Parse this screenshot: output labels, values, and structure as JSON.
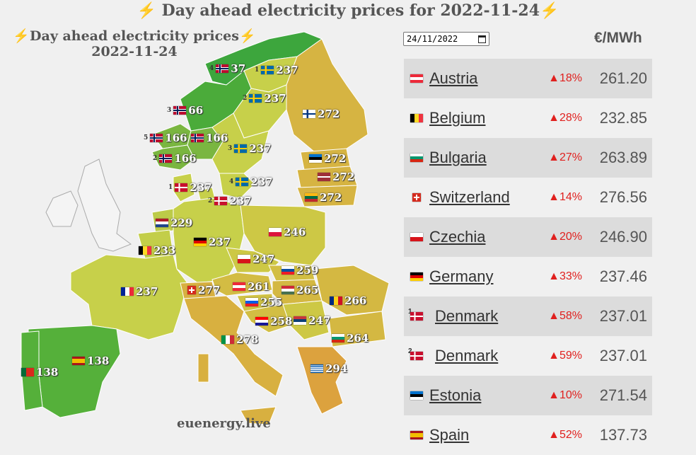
{
  "page_title": "Day ahead electricity prices for 2022-11-24",
  "map": {
    "title_line1": "Day ahead electricity prices",
    "title_line2": "2022-11-24",
    "footer": "euenergy.live",
    "labels": [
      {
        "name": "NO4",
        "sup": "4",
        "value": "37",
        "flag": "norway",
        "fill": "#3da63d"
      },
      {
        "name": "SE1",
        "sup": "1",
        "value": "237",
        "flag": "sweden",
        "fill": "#c7d04a"
      },
      {
        "name": "SE2",
        "sup": "2",
        "value": "237",
        "flag": "sweden",
        "fill": "#c7d04a"
      },
      {
        "name": "FI",
        "sup": "",
        "value": "272",
        "flag": "finland",
        "fill": "#d6b442"
      },
      {
        "name": "NO3",
        "sup": "3",
        "value": "66",
        "flag": "norway",
        "fill": "#4bab3a"
      },
      {
        "name": "NO5",
        "sup": "5",
        "value": "166",
        "flag": "norway",
        "fill": "#7ab640"
      },
      {
        "name": "NO1",
        "sup": "",
        "value": "166",
        "flag": "norway",
        "fill": "#7ab640"
      },
      {
        "name": "NO2",
        "sup": "2",
        "value": "166",
        "flag": "norway",
        "fill": "#7ab640"
      },
      {
        "name": "SE3",
        "sup": "3",
        "value": "237",
        "flag": "sweden",
        "fill": "#c7d04a"
      },
      {
        "name": "EE",
        "sup": "",
        "value": "272",
        "flag": "estonia",
        "fill": "#d6b442"
      },
      {
        "name": "LV",
        "sup": "",
        "value": "272",
        "flag": "latvia",
        "fill": "#d6b442"
      },
      {
        "name": "SE4",
        "sup": "4",
        "value": "237",
        "flag": "sweden",
        "fill": "#c7d04a"
      },
      {
        "name": "LT",
        "sup": "",
        "value": "272",
        "flag": "lithuania",
        "fill": "#d6b442"
      },
      {
        "name": "DK1",
        "sup": "1",
        "value": "237",
        "flag": "denmark",
        "fill": "#c7d04a"
      },
      {
        "name": "DK2",
        "sup": "2",
        "value": "237",
        "flag": "denmark",
        "fill": "#c7d04a"
      },
      {
        "name": "NL",
        "sup": "",
        "value": "229",
        "flag": "netherlands",
        "fill": "#bccb48"
      },
      {
        "name": "PL",
        "sup": "",
        "value": "246",
        "flag": "poland",
        "fill": "#cdc845"
      },
      {
        "name": "DE",
        "sup": "",
        "value": "237",
        "flag": "germany",
        "fill": "#c7d04a"
      },
      {
        "name": "BE",
        "sup": "",
        "value": "233",
        "flag": "belgium",
        "fill": "#c3ce49"
      },
      {
        "name": "CZ",
        "sup": "",
        "value": "247",
        "flag": "czechia",
        "fill": "#cdc845"
      },
      {
        "name": "SK",
        "sup": "",
        "value": "259",
        "flag": "slovakia",
        "fill": "#d2be43"
      },
      {
        "name": "FR",
        "sup": "",
        "value": "237",
        "flag": "france",
        "fill": "#c7d04a"
      },
      {
        "name": "CH",
        "sup": "",
        "value": "277",
        "flag": "switzerland",
        "fill": "#d8b040"
      },
      {
        "name": "AT",
        "sup": "",
        "value": "261",
        "flag": "austria",
        "fill": "#d3bc43"
      },
      {
        "name": "HU",
        "sup": "",
        "value": "265",
        "flag": "hungary",
        "fill": "#d4b842"
      },
      {
        "name": "RO",
        "sup": "",
        "value": "266",
        "flag": "romania",
        "fill": "#d4b842"
      },
      {
        "name": "SI",
        "sup": "",
        "value": "255",
        "flag": "slovenia",
        "fill": "#d0c244"
      },
      {
        "name": "HR",
        "sup": "",
        "value": "258",
        "flag": "croatia",
        "fill": "#d2be43"
      },
      {
        "name": "RS",
        "sup": "",
        "value": "247",
        "flag": "serbia",
        "fill": "#cdc845"
      },
      {
        "name": "IT",
        "sup": "",
        "value": "278",
        "flag": "italy",
        "fill": "#d8b040"
      },
      {
        "name": "BG",
        "sup": "",
        "value": "264",
        "flag": "bulgaria",
        "fill": "#d4b842"
      },
      {
        "name": "ES",
        "sup": "",
        "value": "138",
        "flag": "spain",
        "fill": "#55b03a"
      },
      {
        "name": "PT",
        "sup": "",
        "value": "138",
        "flag": "portugal",
        "fill": "#55b03a"
      },
      {
        "name": "GR",
        "sup": "",
        "value": "294",
        "flag": "greece",
        "fill": "#dca23e"
      }
    ]
  },
  "date_input": {
    "value": "24/11/2022"
  },
  "unit_header": "€/MWh",
  "table": [
    {
      "country": "Austria",
      "flag": "austria",
      "sup": "",
      "change": "▲18%",
      "price": "261.20"
    },
    {
      "country": "Belgium",
      "flag": "belgium",
      "sup": "",
      "change": "▲28%",
      "price": "232.85"
    },
    {
      "country": "Bulgaria",
      "flag": "bulgaria",
      "sup": "",
      "change": "▲27%",
      "price": "263.89"
    },
    {
      "country": "Switzerland",
      "flag": "switzerland",
      "sup": "",
      "change": "▲14%",
      "price": "276.56"
    },
    {
      "country": "Czechia",
      "flag": "czechia",
      "sup": "",
      "change": "▲20%",
      "price": "246.90"
    },
    {
      "country": "Germany",
      "flag": "germany",
      "sup": "",
      "change": "▲33%",
      "price": "237.46"
    },
    {
      "country": "Denmark",
      "flag": "denmark",
      "sup": "1",
      "change": "▲58%",
      "price": "237.01"
    },
    {
      "country": "Denmark",
      "flag": "denmark",
      "sup": "2",
      "change": "▲59%",
      "price": "237.01"
    },
    {
      "country": "Estonia",
      "flag": "estonia",
      "sup": "",
      "change": "▲10%",
      "price": "271.54"
    },
    {
      "country": "Spain",
      "flag": "spain",
      "sup": "",
      "change": "▲52%",
      "price": "137.73"
    }
  ]
}
